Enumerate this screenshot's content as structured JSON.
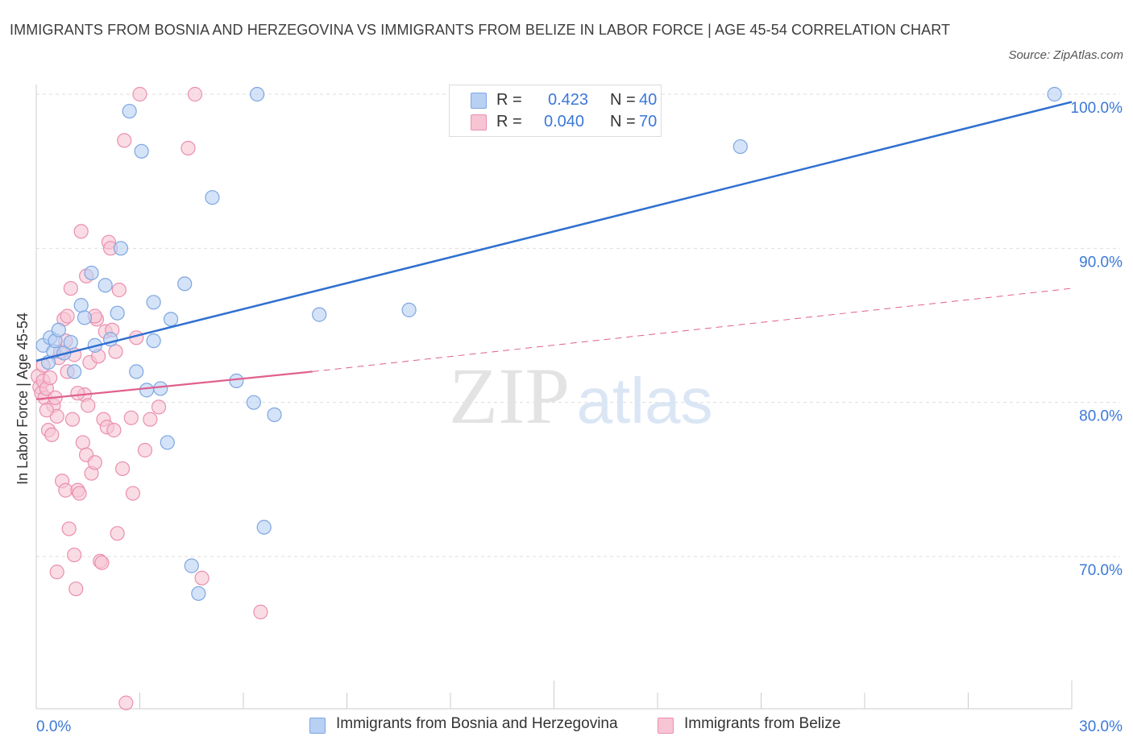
{
  "title": "IMMIGRANTS FROM BOSNIA AND HERZEGOVINA VS IMMIGRANTS FROM BELIZE IN LABOR FORCE | AGE 45-54 CORRELATION CHART",
  "source": "Source: ZipAtlas.com",
  "watermark": {
    "zip": "ZIP",
    "atlas": "atlas"
  },
  "colors": {
    "blue_fill": "#b8d0f3",
    "blue_stroke": "#7ea6e0",
    "blue_line": "#2f6fd0",
    "pink_fill": "#f7c4d4",
    "pink_stroke": "#ea8fae",
    "pink_line": "#e0608c",
    "axis_text": "#3b78d8",
    "grid": "#dddddd"
  },
  "legend": {
    "r_label": "R =",
    "n_label": "N =",
    "series": [
      {
        "r": "0.423",
        "n": "40"
      },
      {
        "r": "0.040",
        "n": "70"
      }
    ]
  },
  "bottom_legend": [
    "Immigrants from Bosnia and Herzegovina",
    "Immigrants from Belize"
  ],
  "chart_data": {
    "type": "scatter",
    "ylabel": "In Labor Force | Age 45-54",
    "xlabel": "",
    "xlim": [
      0,
      30
    ],
    "ylim": [
      60.5,
      101
    ],
    "x_tick_labels": [
      "0.0%",
      "30.0%"
    ],
    "y_ticks": [
      100,
      90,
      80,
      70
    ],
    "y_tick_labels": [
      "100.0%",
      "90.0%",
      "80.0%",
      "70.0%"
    ],
    "grid": true,
    "series": [
      {
        "name": "Immigrants from Bosnia and Herzegovina",
        "R": 0.423,
        "N": 40,
        "trend": {
          "x": [
            0.0,
            30.0
          ],
          "y": [
            82.7,
            99.5
          ]
        },
        "points": [
          [
            0.2,
            83.7
          ],
          [
            0.35,
            82.6
          ],
          [
            0.4,
            84.2
          ],
          [
            0.5,
            83.3
          ],
          [
            0.55,
            84.0
          ],
          [
            0.65,
            84.7
          ],
          [
            0.8,
            83.2
          ],
          [
            1.0,
            83.9
          ],
          [
            1.1,
            82.0
          ],
          [
            1.3,
            86.3
          ],
          [
            1.4,
            85.5
          ],
          [
            1.6,
            88.4
          ],
          [
            1.7,
            83.7
          ],
          [
            2.0,
            87.6
          ],
          [
            2.15,
            84.1
          ],
          [
            2.35,
            85.8
          ],
          [
            2.45,
            90.0
          ],
          [
            2.7,
            98.9
          ],
          [
            2.9,
            82.0
          ],
          [
            3.05,
            96.3
          ],
          [
            3.2,
            80.8
          ],
          [
            3.4,
            84.0
          ],
          [
            3.4,
            86.5
          ],
          [
            3.6,
            80.9
          ],
          [
            3.8,
            77.4
          ],
          [
            3.9,
            85.4
          ],
          [
            4.3,
            87.7
          ],
          [
            4.5,
            69.4
          ],
          [
            4.7,
            67.6
          ],
          [
            5.1,
            93.3
          ],
          [
            5.8,
            81.4
          ],
          [
            6.3,
            80.0
          ],
          [
            6.4,
            100.0
          ],
          [
            6.6,
            71.9
          ],
          [
            6.9,
            79.2
          ],
          [
            8.2,
            85.7
          ],
          [
            10.8,
            86.0
          ],
          [
            15.3,
            100.0
          ],
          [
            20.4,
            96.6
          ],
          [
            29.5,
            100.0
          ]
        ]
      },
      {
        "name": "Immigrants from Belize",
        "R": 0.04,
        "N": 70,
        "trend": {
          "x": [
            0.0,
            8.0
          ],
          "y": [
            80.2,
            82.0
          ]
        },
        "trend_extrapolated": {
          "x": [
            8.0,
            30.0
          ],
          "y": [
            82.0,
            87.4
          ]
        },
        "points": [
          [
            0.05,
            81.7
          ],
          [
            0.1,
            81.0
          ],
          [
            0.15,
            80.6
          ],
          [
            0.2,
            82.4
          ],
          [
            0.2,
            81.4
          ],
          [
            0.25,
            80.3
          ],
          [
            0.3,
            80.9
          ],
          [
            0.35,
            78.2
          ],
          [
            0.4,
            81.6
          ],
          [
            0.45,
            77.9
          ],
          [
            0.5,
            79.8
          ],
          [
            0.55,
            80.3
          ],
          [
            0.6,
            79.1
          ],
          [
            0.65,
            82.9
          ],
          [
            0.7,
            83.3
          ],
          [
            0.75,
            74.9
          ],
          [
            0.8,
            85.4
          ],
          [
            0.85,
            84.0
          ],
          [
            0.85,
            74.3
          ],
          [
            0.9,
            85.6
          ],
          [
            0.9,
            82.0
          ],
          [
            0.95,
            71.8
          ],
          [
            1.0,
            87.4
          ],
          [
            1.05,
            78.9
          ],
          [
            1.1,
            70.1
          ],
          [
            1.1,
            83.1
          ],
          [
            1.15,
            67.9
          ],
          [
            1.2,
            74.3
          ],
          [
            1.25,
            74.1
          ],
          [
            1.3,
            91.1
          ],
          [
            1.35,
            77.4
          ],
          [
            1.4,
            80.5
          ],
          [
            1.45,
            76.6
          ],
          [
            1.45,
            88.2
          ],
          [
            1.5,
            79.8
          ],
          [
            1.55,
            82.6
          ],
          [
            1.6,
            75.4
          ],
          [
            1.7,
            76.1
          ],
          [
            1.75,
            85.4
          ],
          [
            1.8,
            83.0
          ],
          [
            1.85,
            69.7
          ],
          [
            1.9,
            69.6
          ],
          [
            1.95,
            78.9
          ],
          [
            2.0,
            84.6
          ],
          [
            2.05,
            78.4
          ],
          [
            2.1,
            90.4
          ],
          [
            2.15,
            90.0
          ],
          [
            2.2,
            84.7
          ],
          [
            2.25,
            78.2
          ],
          [
            2.3,
            83.3
          ],
          [
            2.35,
            71.5
          ],
          [
            2.4,
            87.3
          ],
          [
            2.5,
            75.7
          ],
          [
            2.55,
            97.0
          ],
          [
            2.6,
            60.5
          ],
          [
            2.75,
            79.0
          ],
          [
            2.8,
            74.1
          ],
          [
            3.0,
            100.0
          ],
          [
            3.15,
            76.9
          ],
          [
            3.3,
            78.9
          ],
          [
            3.55,
            79.7
          ],
          [
            4.4,
            96.5
          ],
          [
            4.6,
            100.0
          ],
          [
            4.8,
            68.6
          ],
          [
            6.5,
            66.4
          ],
          [
            0.6,
            69.0
          ],
          [
            1.7,
            85.6
          ],
          [
            2.9,
            84.2
          ],
          [
            0.3,
            79.5
          ],
          [
            1.2,
            80.6
          ]
        ]
      }
    ]
  }
}
